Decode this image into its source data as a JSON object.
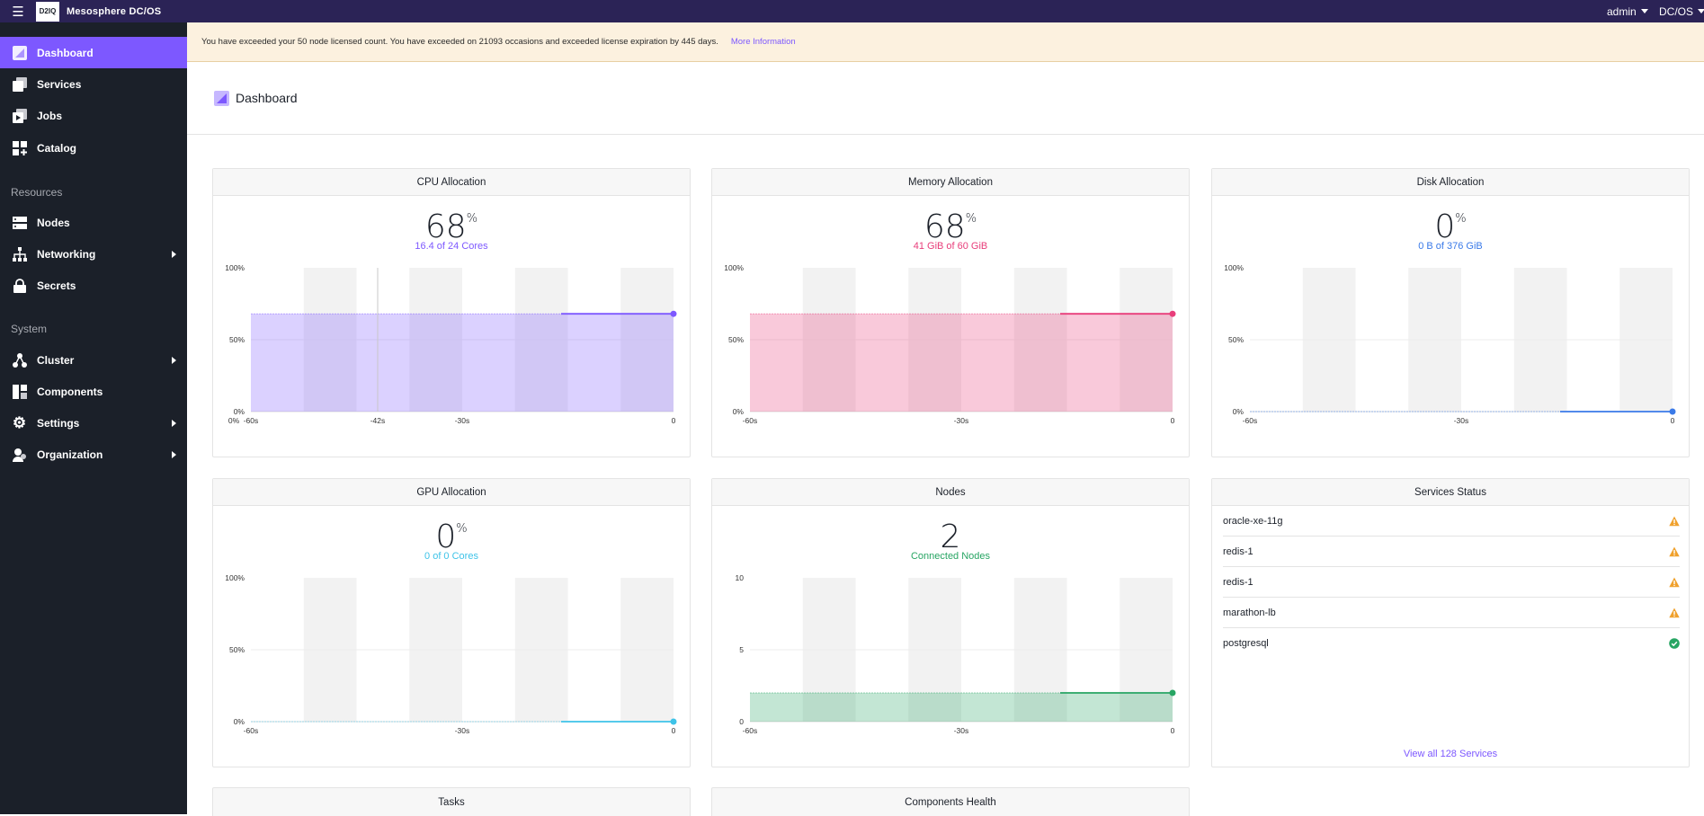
{
  "topbar": {
    "brand": "Mesosphere DC/OS",
    "logo_text": "D2IQ",
    "user": "admin",
    "cluster": "DC/OS"
  },
  "sidebar": {
    "items": [
      {
        "label": "Dashboard",
        "icon": "dashboard-icon"
      },
      {
        "label": "Services",
        "icon": "services-icon"
      },
      {
        "label": "Jobs",
        "icon": "jobs-icon"
      },
      {
        "label": "Catalog",
        "icon": "catalog-icon"
      }
    ],
    "resources_heading": "Resources",
    "resources": [
      {
        "label": "Nodes",
        "icon": "nodes-icon"
      },
      {
        "label": "Networking",
        "icon": "networking-icon"
      },
      {
        "label": "Secrets",
        "icon": "secrets-icon"
      }
    ],
    "system_heading": "System",
    "system": [
      {
        "label": "Cluster",
        "icon": "cluster-icon"
      },
      {
        "label": "Components",
        "icon": "components-icon"
      },
      {
        "label": "Settings",
        "icon": "settings-icon"
      },
      {
        "label": "Organization",
        "icon": "organization-icon"
      }
    ]
  },
  "banner": {
    "message": "You have exceeded your 50 node licensed count. You have exceeded on 21093 occasions and exceeded license expiration by 445 days.",
    "link": "More Information"
  },
  "page": {
    "title": "Dashboard"
  },
  "colors": {
    "accent": "#7d58ff",
    "cpu": "#7d58ff",
    "memory": "#e83d7a",
    "disk": "#3a7ae8",
    "gpu": "#3ec3e8",
    "nodes": "#27a563",
    "warning": "#f0a12d",
    "healthy": "#27a563"
  },
  "panels": {
    "cpu": {
      "title": "CPU Allocation",
      "value": "68",
      "unit": "%",
      "sub": "16.4 of 24 Cores"
    },
    "memory": {
      "title": "Memory Allocation",
      "value": "68",
      "unit": "%",
      "sub": "41 GiB of 60 GiB"
    },
    "disk": {
      "title": "Disk Allocation",
      "value": "0",
      "unit": "%",
      "sub": "0 B of 376 GiB"
    },
    "gpu": {
      "title": "GPU Allocation",
      "value": "0",
      "unit": "%",
      "sub": "0 of 0 Cores"
    },
    "nodes": {
      "title": "Nodes",
      "value": "2",
      "sub": "Connected Nodes"
    },
    "services": {
      "title": "Services Status",
      "items": [
        {
          "name": "oracle-xe-11g",
          "status": "warning"
        },
        {
          "name": "redis-1",
          "status": "warning"
        },
        {
          "name": "redis-1",
          "status": "warning"
        },
        {
          "name": "marathon-lb",
          "status": "warning"
        },
        {
          "name": "postgresql",
          "status": "healthy"
        }
      ],
      "view_all": "View all 128 Services"
    },
    "tasks": {
      "title": "Tasks"
    },
    "components": {
      "title": "Components Health"
    }
  },
  "chart_data": [
    {
      "id": "cpu",
      "type": "area",
      "title": "CPU Allocation",
      "x_ticks": [
        "-60s",
        "-30s",
        "0"
      ],
      "y_ticks": [
        "0%",
        "50%",
        "100%"
      ],
      "ylim": [
        0,
        100
      ],
      "values": [
        68
      ],
      "hover_label": "-42s",
      "hover_value": "0%"
    },
    {
      "id": "memory",
      "type": "area",
      "title": "Memory Allocation",
      "x_ticks": [
        "-60s",
        "-30s",
        "0"
      ],
      "y_ticks": [
        "0%",
        "50%",
        "100%"
      ],
      "ylim": [
        0,
        100
      ],
      "values": [
        68
      ]
    },
    {
      "id": "disk",
      "type": "area",
      "title": "Disk Allocation",
      "x_ticks": [
        "-60s",
        "-30s",
        "0"
      ],
      "y_ticks": [
        "0%",
        "50%",
        "100%"
      ],
      "ylim": [
        0,
        100
      ],
      "values": [
        0
      ]
    },
    {
      "id": "gpu",
      "type": "area",
      "title": "GPU Allocation",
      "x_ticks": [
        "-60s",
        "-30s",
        "0"
      ],
      "y_ticks": [
        "0%",
        "50%",
        "100%"
      ],
      "ylim": [
        0,
        100
      ],
      "values": [
        0
      ]
    },
    {
      "id": "nodes",
      "type": "area",
      "title": "Nodes",
      "x_ticks": [
        "-60s",
        "-30s",
        "0"
      ],
      "y_ticks": [
        "0",
        "5",
        "10"
      ],
      "ylim": [
        0,
        10
      ],
      "values": [
        2
      ]
    }
  ]
}
